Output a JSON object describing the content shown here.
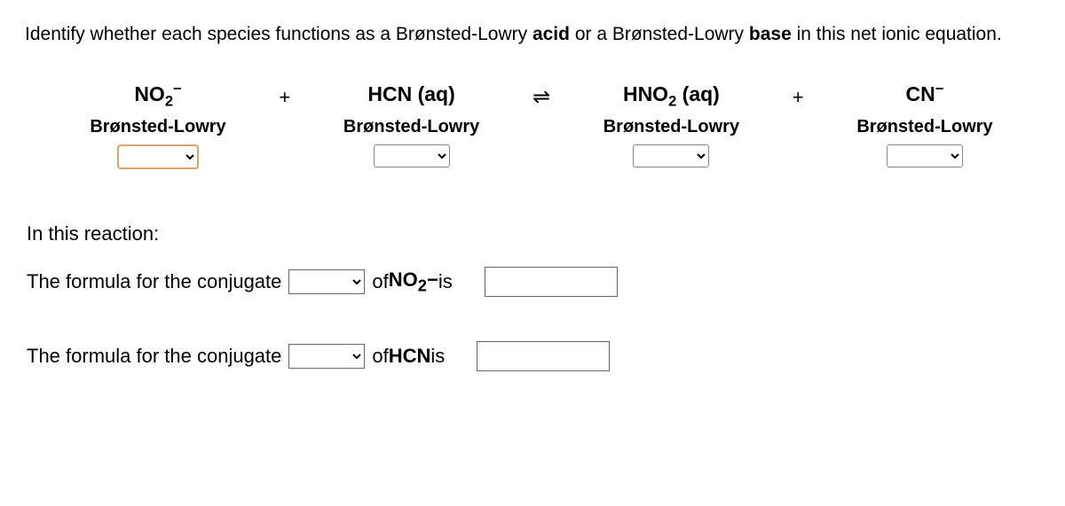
{
  "prompt": {
    "pre": "Identify whether each species functions as a Brønsted-Lowry ",
    "b1": "acid",
    "mid": " or a Brønsted-Lowry ",
    "b2": "base",
    "post": " in this net ionic equation."
  },
  "equation": {
    "species": [
      {
        "formula_html": "NO<sub>2</sub><span class='sup'>&#8722;</span>",
        "highlight": true
      },
      {
        "formula_html": "HCN (aq)",
        "highlight": false
      },
      {
        "formula_html": "HNO<sub>2</sub> (aq)",
        "highlight": false
      },
      {
        "formula_html": "CN<span class='sup'>&#8722;</span>",
        "highlight": false
      }
    ],
    "ops": {
      "plus": "+",
      "eq": "⇌"
    },
    "bl_label": "Brønsted-Lowry"
  },
  "section2": {
    "heading": "In this reaction:",
    "line1": {
      "pre": "The formula for the conjugate",
      "of": " of ",
      "subject_html": "NO<sub>2</sub><span class='sup'>&#8722;</span>",
      "is": " is"
    },
    "line2": {
      "pre": "The formula for the conjugate",
      "of": " of ",
      "subject_html": "HCN",
      "is": " is"
    }
  }
}
